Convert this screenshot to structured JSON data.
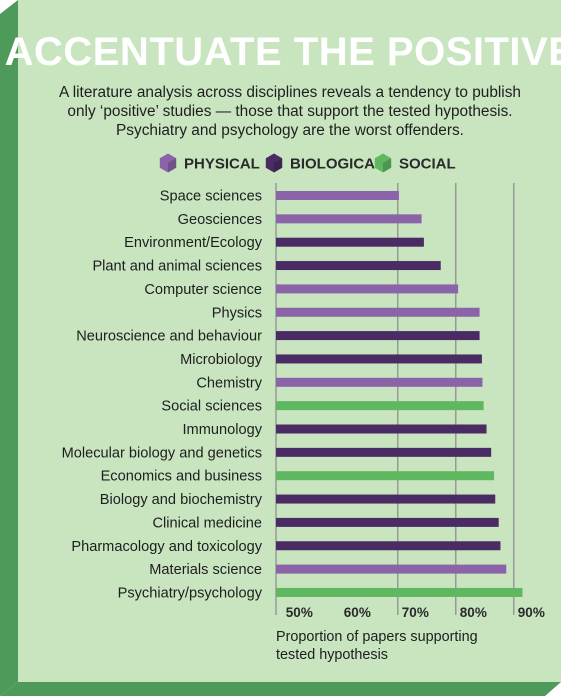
{
  "colors": {
    "background": "#c8e5c0",
    "shadow": "#4e9a5b",
    "physical": "#8a63a8",
    "biological": "#4a2b63",
    "social": "#5fb860",
    "gridline": "#8a8a8a"
  },
  "header": {
    "title": "ACCENTUATE THE POSITIVE",
    "subtitle": [
      "A literature analysis across disciplines reveals a tendency to publish",
      "only ‘positive’ studies — those that support the tested hypothesis.",
      "Psychiatry and psychology are the worst offenders."
    ]
  },
  "chart_data": {
    "type": "bar",
    "orientation": "horizontal",
    "legend": [
      {
        "key": "physical",
        "label": "PHYSICAL"
      },
      {
        "key": "biological",
        "label": "BIOLOGICAL"
      },
      {
        "key": "social",
        "label": "SOCIAL"
      }
    ],
    "legend_placement": "top",
    "categories": [
      "Space sciences",
      "Geosciences",
      "Environment/Ecology",
      "Plant and animal sciences",
      "Computer science",
      "Physics",
      "Neuroscience and behaviour",
      "Microbiology",
      "Chemistry",
      "Social sciences",
      "Immunology",
      "Molecular biology and genetics",
      "Economics and business",
      "Biology and biochemistry",
      "Clinical medicine",
      "Pharmacology and toxicology",
      "Materials science",
      "Psychiatry/psychology"
    ],
    "groups": [
      "physical",
      "physical",
      "biological",
      "biological",
      "physical",
      "physical",
      "biological",
      "biological",
      "physical",
      "social",
      "biological",
      "biological",
      "social",
      "biological",
      "biological",
      "biological",
      "physical",
      "social"
    ],
    "values": [
      70.2,
      74.1,
      74.5,
      77.4,
      80.4,
      84.1,
      84.1,
      84.5,
      84.6,
      84.8,
      85.3,
      86.1,
      86.6,
      86.8,
      87.4,
      87.7,
      88.7,
      91.5
    ],
    "xlim": [
      49,
      92
    ],
    "xticks": [
      50,
      60,
      70,
      80,
      90
    ],
    "xtick_labels": [
      "50%",
      "60%",
      "70%",
      "80%",
      "90%"
    ],
    "gridlines": [
      70,
      80,
      90
    ],
    "xlabel": [
      "Proportion of papers supporting",
      "tested hypothesis"
    ]
  }
}
